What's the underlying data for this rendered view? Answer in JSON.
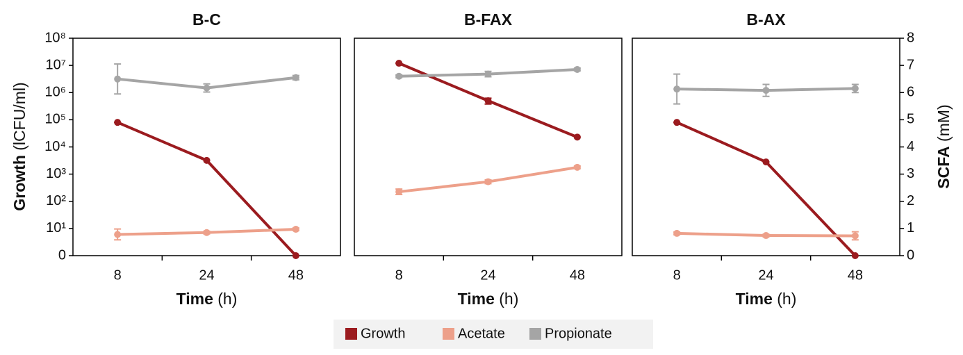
{
  "chart_data": [
    {
      "type": "line",
      "title": "B-C",
      "categories": [
        "8",
        "24",
        "48"
      ],
      "xlabel": "Time",
      "xlabel_unit": "(h)",
      "ylabel": "Growth",
      "ylabel_unit": "(lCFU/ml)",
      "ylog": true,
      "ylim": [
        0,
        100000000
      ],
      "yticks": [
        0,
        {
          "value": 10,
          "label": "10¹"
        },
        {
          "value": 100,
          "label": "10²"
        },
        {
          "value": 1000,
          "label": "10³"
        },
        {
          "value": 10000,
          "label": "10⁴"
        },
        {
          "value": 100000,
          "label": "10⁵"
        },
        {
          "value": 1000000,
          "label": "10⁶"
        },
        {
          "value": 10000000,
          "label": "10⁷"
        },
        {
          "value": 100000000,
          "label": "10⁸"
        }
      ],
      "y2lim": [
        0,
        8
      ],
      "series": [
        {
          "name": "Growth",
          "color": "#9b1b1f",
          "values": [
            80000,
            3200,
            0
          ],
          "errors": [
            0,
            0,
            0
          ]
        },
        {
          "name": "Acetate",
          "color": "#eda08a",
          "axis": "y2",
          "values": [
            0.78,
            0.85,
            0.97
          ],
          "errors": [
            0.2,
            0.05,
            0.05
          ]
        },
        {
          "name": "Propionate",
          "color": "#a5a5a5",
          "axis": "y2",
          "values": [
            6.5,
            6.17,
            6.55
          ],
          "errors": [
            0.55,
            0.15,
            0.08
          ]
        }
      ]
    },
    {
      "type": "line",
      "title": "B-FAX",
      "categories": [
        "8",
        "24",
        "48"
      ],
      "xlabel": "Time",
      "xlabel_unit": "(h)",
      "ylog": true,
      "ylim": [
        0,
        100000000
      ],
      "y2lim": [
        0,
        8
      ],
      "series": [
        {
          "color": "#9b1b1f",
          "values": [
            12000000,
            500000,
            23000
          ],
          "errors": [
            0,
            120000,
            0
          ]
        },
        {
          "color": "#eda08a",
          "axis": "y2",
          "values": [
            2.35,
            2.72,
            3.25
          ],
          "errors": [
            0.1,
            0.07,
            0.05
          ]
        },
        {
          "color": "#a5a5a5",
          "axis": "y2",
          "values": [
            6.6,
            6.68,
            6.85
          ],
          "errors": [
            0.05,
            0.1,
            0.05
          ]
        }
      ]
    },
    {
      "type": "line",
      "title": "B-AX",
      "categories": [
        "8",
        "24",
        "48"
      ],
      "xlabel": "Time",
      "xlabel_unit": "(h)",
      "ylog": true,
      "ylim": [
        0,
        100000000
      ],
      "y2label": "SCFA",
      "y2label_unit": "(mM)",
      "y2lim": [
        0,
        8
      ],
      "y2ticks": [
        0,
        1,
        2,
        3,
        4,
        5,
        6,
        7,
        8
      ],
      "series": [
        {
          "color": "#9b1b1f",
          "values": [
            80000,
            2800,
            0
          ],
          "errors": [
            0,
            0,
            0
          ]
        },
        {
          "color": "#eda08a",
          "axis": "y2",
          "values": [
            0.82,
            0.74,
            0.73
          ],
          "errors": [
            0.05,
            0.05,
            0.15
          ]
        },
        {
          "color": "#a5a5a5",
          "axis": "y2",
          "values": [
            6.13,
            6.08,
            6.15
          ],
          "errors": [
            0.55,
            0.22,
            0.15
          ]
        }
      ]
    }
  ]
}
